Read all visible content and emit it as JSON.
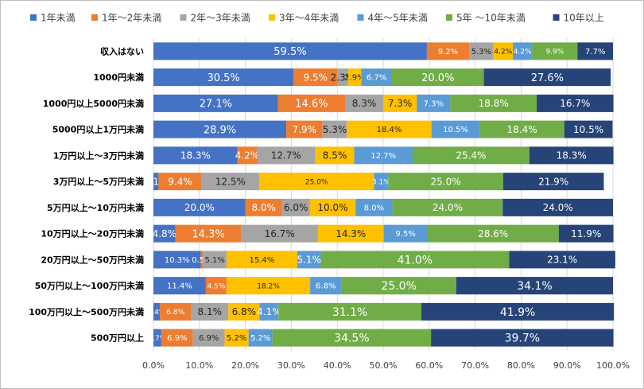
{
  "chart_data": {
    "type": "bar",
    "orientation": "horizontal",
    "stacked": "percent",
    "categories": [
      "収入はない",
      "1000円未満",
      "1000円以上5000円未満",
      "5000円以上1万円未満",
      "1万円以上～3万円未満",
      "3万円以上～5万円未満",
      "5万円以上～10万円未満",
      "10万円以上～20万円未満",
      "20万円以上～50万円未満",
      "50万円以上～100万円未満",
      "100万円以上～500万円未満",
      "500万円以上"
    ],
    "series": [
      {
        "name": "1年未満",
        "color": "#4472c4",
        "values": [
          59.5,
          30.5,
          27.1,
          28.9,
          18.3,
          1.1,
          20.0,
          4.8,
          10.3,
          11.4,
          1.4,
          1.7
        ],
        "labels": [
          "59.5%",
          "30.5%",
          "27.1%",
          "28.9%",
          "18.3%",
          "1.1%",
          "20.0%",
          "4.8%",
          "10.3%",
          "11.4%",
          "1.4%",
          "1.7%"
        ]
      },
      {
        "name": "1年～2年未満",
        "color": "#ed7d31",
        "values": [
          9.2,
          9.5,
          14.6,
          7.9,
          4.2,
          9.4,
          8.0,
          14.3,
          0.5,
          4.5,
          6.8,
          6.9
        ],
        "labels": [
          "9.2%",
          "9.5%",
          "14.6%",
          "7.9%",
          "4.2%",
          "9.4%",
          "8.0%",
          "14.3%",
          "0.5%",
          "4.5%",
          "6.8%",
          "6.9%"
        ]
      },
      {
        "name": "2年～3年未満",
        "color": "#a5a5a5",
        "values": [
          5.3,
          2.3,
          8.3,
          5.3,
          12.7,
          12.5,
          6.0,
          16.7,
          5.1,
          0.0,
          8.1,
          6.9
        ],
        "labels": [
          "5.3%",
          "2.3%",
          "8.3%",
          "5.3%",
          "12.7%",
          "12.5%",
          "6.0%",
          "16.7%",
          "5.1%",
          "",
          "8.1%",
          "6.9%"
        ]
      },
      {
        "name": "3年～4年未満",
        "color": "#ffc000",
        "values": [
          4.2,
          2.9,
          7.3,
          18.4,
          8.5,
          25.0,
          10.0,
          14.3,
          15.4,
          18.2,
          6.8,
          5.2
        ],
        "labels": [
          "4.2%",
          "2.9%",
          "7.3%",
          "18.4%",
          "8.5%",
          "25.0%",
          "10.0%",
          "14.3%",
          "15.4%",
          "18.2%",
          "6.8%",
          "5.2%"
        ]
      },
      {
        "name": "4年～5年未満",
        "color": "#5b9bd5",
        "values": [
          4.2,
          6.7,
          7.3,
          10.5,
          12.7,
          3.1,
          8.0,
          9.5,
          5.1,
          6.8,
          4.1,
          5.2
        ],
        "labels": [
          "4.2%",
          "6.7%",
          "7.3%",
          "10.5%",
          "12.7%",
          "3.1%",
          "8.0%",
          "9.5%",
          "5.1%",
          "6.8%",
          "4.1%",
          "5.2%"
        ]
      },
      {
        "name": "5年 ～10年未満",
        "color": "#70ad47",
        "values": [
          9.9,
          20.0,
          18.8,
          18.4,
          25.4,
          25.0,
          24.0,
          28.6,
          41.0,
          25.0,
          31.1,
          34.5
        ],
        "labels": [
          "9.9%",
          "20.0%",
          "18.8%",
          "18.4%",
          "25.4%",
          "25.0%",
          "24.0%",
          "28.6%",
          "41.0%",
          "25.0%",
          "31.1%",
          "34.5%"
        ]
      },
      {
        "name": "10年以上",
        "color": "#264478",
        "values": [
          7.7,
          27.6,
          16.7,
          10.5,
          18.3,
          21.9,
          24.0,
          11.9,
          23.1,
          34.1,
          41.9,
          39.7
        ],
        "labels": [
          "7.7%",
          "27.6%",
          "16.7%",
          "10.5%",
          "18.3%",
          "21.9%",
          "24.0%",
          "11.9%",
          "23.1%",
          "34.1%",
          "41.9%",
          "39.7%"
        ]
      }
    ],
    "label_font_size": [
      [
        13,
        10,
        10,
        9,
        9,
        9,
        10
      ],
      [
        13,
        12,
        12,
        10,
        10,
        13,
        13
      ],
      [
        13,
        13,
        12,
        12,
        10,
        12,
        12
      ],
      [
        13,
        12,
        12,
        10,
        10,
        12,
        12
      ],
      [
        12,
        12,
        12,
        12,
        10,
        12,
        12
      ],
      [
        12,
        12,
        12,
        9,
        9,
        12,
        12
      ],
      [
        12,
        12,
        12,
        12,
        10,
        12,
        12
      ],
      [
        12,
        13,
        12,
        12,
        10,
        12,
        12
      ],
      [
        10,
        10,
        10,
        10,
        12,
        14,
        12
      ],
      [
        10,
        9,
        9,
        9,
        10,
        14,
        14
      ],
      [
        9,
        9,
        12,
        12,
        12,
        14,
        14
      ],
      [
        9,
        10,
        10,
        10,
        10,
        14,
        14
      ]
    ],
    "label_color_dark_on_series": [
      2,
      3
    ],
    "xticks": [
      "0.0%",
      "10.0%",
      "20.0%",
      "30.0%",
      "40.0%",
      "50.0%",
      "60.0%",
      "70.0%",
      "80.0%",
      "90.0%",
      "100.0%"
    ],
    "xlim": [
      0,
      100
    ],
    "legend_position": "top",
    "grid": "vertical",
    "title": "",
    "xlabel": "",
    "ylabel": ""
  }
}
